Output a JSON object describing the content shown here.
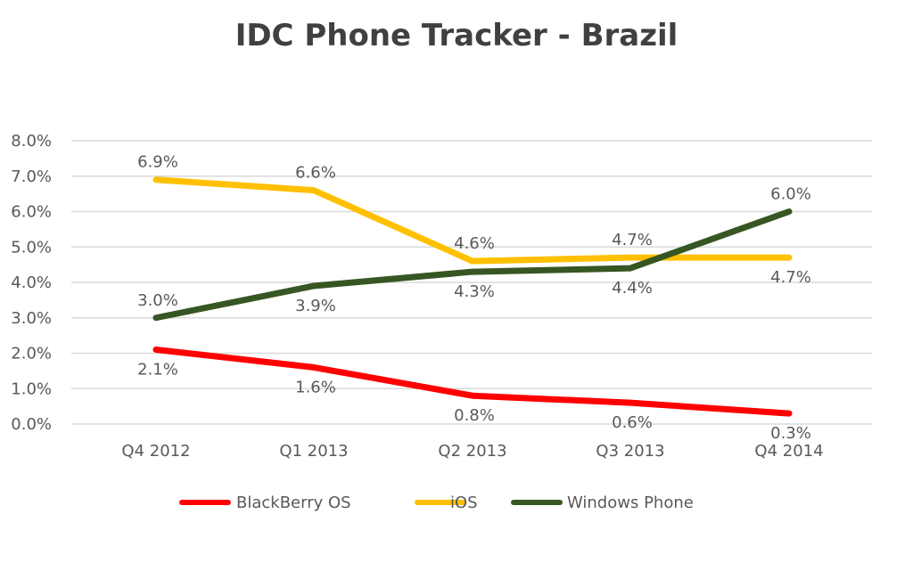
{
  "chart_data": {
    "type": "line",
    "title": "IDC Phone Tracker - Brazil",
    "xlabel": "",
    "ylabel": "",
    "categories": [
      "Q4 2012",
      "Q1 2013",
      "Q2 2013",
      "Q3 2013",
      "Q4 2014"
    ],
    "yticks": [
      "0.0%",
      "1.0%",
      "2.0%",
      "3.0%",
      "4.0%",
      "5.0%",
      "6.0%",
      "7.0%",
      "8.0%"
    ],
    "ylim": [
      0,
      8
    ],
    "grid": true,
    "legend_position": "bottom",
    "series": [
      {
        "name": "BlackBerry OS",
        "color": "#ff0000",
        "values": [
          2.1,
          1.6,
          0.8,
          0.6,
          0.3
        ],
        "labels": [
          "2.1%",
          "1.6%",
          "0.8%",
          "0.6%",
          "0.3%"
        ],
        "label_side": [
          "below",
          "below",
          "below",
          "below",
          "below"
        ]
      },
      {
        "name": "iOS",
        "color": "#ffc000",
        "values": [
          6.9,
          6.6,
          4.6,
          4.7,
          4.7
        ],
        "labels": [
          "6.9%",
          "6.6%",
          "4.6%",
          "4.7%",
          "4.7%"
        ],
        "label_side": [
          "above",
          "above",
          "above",
          "above",
          "below"
        ]
      },
      {
        "name": "Windows Phone",
        "color": "#375623",
        "values": [
          3.0,
          3.9,
          4.3,
          4.4,
          6.0
        ],
        "labels": [
          "3.0%",
          "3.9%",
          "4.3%",
          "4.4%",
          "6.0%"
        ],
        "label_side": [
          "above",
          "below",
          "below",
          "below",
          "above"
        ]
      }
    ]
  }
}
